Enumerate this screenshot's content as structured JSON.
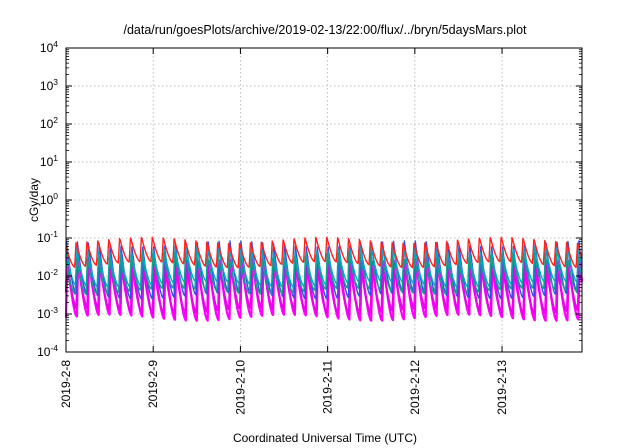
{
  "chart_data": {
    "type": "line",
    "title": "/data/run/goesPlots/archive/2019-02-13/22:00/flux/../bryn/5daysMars.plot",
    "xlabel": "Coordinated Universal Time (UTC)",
    "ylabel": "cGy/day",
    "x_range": [
      "2019-02-08",
      "2019-02-13T22:00"
    ],
    "x_ticks": [
      "2019-2-8",
      "2019-2-9",
      "2019-2-10",
      "2019-2-11",
      "2019-2-12",
      "2019-2-13"
    ],
    "y_scale": "log",
    "ylim": [
      0.0001,
      10000
    ],
    "y_ticks": [
      {
        "base": "10",
        "exp": "-4"
      },
      {
        "base": "10",
        "exp": "-3"
      },
      {
        "base": "10",
        "exp": "-2"
      },
      {
        "base": "10",
        "exp": "-1"
      },
      {
        "base": "10",
        "exp": "0"
      },
      {
        "base": "10",
        "exp": "1"
      },
      {
        "base": "10",
        "exp": "2"
      },
      {
        "base": "10",
        "exp": "3"
      },
      {
        "base": "10",
        "exp": "4"
      }
    ],
    "grid": true,
    "legend": "none",
    "cycles_per_day": 8,
    "series": [
      {
        "color": "#ff00ff",
        "peak": 0.03,
        "trough": 0.0008
      },
      {
        "color": "#ee00ee",
        "peak": 0.022,
        "trough": 0.0012
      },
      {
        "color": "#3050e0",
        "peak": 0.07,
        "trough": 0.003
      },
      {
        "color": "#00aacc",
        "peak": 0.05,
        "trough": 0.006
      },
      {
        "color": "#10a090",
        "peak": 0.035,
        "trough": 0.004
      },
      {
        "color": "#ff2020",
        "peak": 0.09,
        "trough": 0.02
      }
    ]
  }
}
